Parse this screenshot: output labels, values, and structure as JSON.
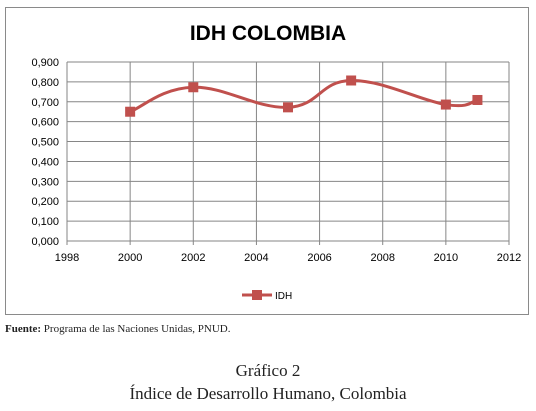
{
  "colors": {
    "series": "#c0504d",
    "marker": "#c0504d",
    "grid": "#868686",
    "axis": "#868686"
  },
  "source": {
    "label": "Fuente:",
    "text": "Programa de las Naciones Unidas, PNUD."
  },
  "caption": {
    "number": "Gráfico 2",
    "text": "Índice de Desarrollo Humano, Colombia"
  },
  "chart_data": {
    "type": "scatter",
    "title": "IDH COLOMBIA",
    "xlabel": "",
    "ylabel": "",
    "xlim": [
      1998,
      2012
    ],
    "ylim": [
      0,
      0.9
    ],
    "x_ticks": [
      "1998",
      "2000",
      "2002",
      "2004",
      "2006",
      "2008",
      "2010",
      "2012"
    ],
    "y_ticks": [
      "0,000",
      "0,100",
      "0,200",
      "0,300",
      "0,400",
      "0,500",
      "0,600",
      "0,700",
      "0,800",
      "0,900"
    ],
    "grid": true,
    "smooth_line": true,
    "legend_position": "bottom",
    "series": [
      {
        "name": "IDH",
        "x": [
          2000,
          2002,
          2005,
          2007,
          2010,
          2011
        ],
        "values": [
          0.65,
          0.773,
          0.672,
          0.807,
          0.686,
          0.709
        ]
      }
    ]
  }
}
